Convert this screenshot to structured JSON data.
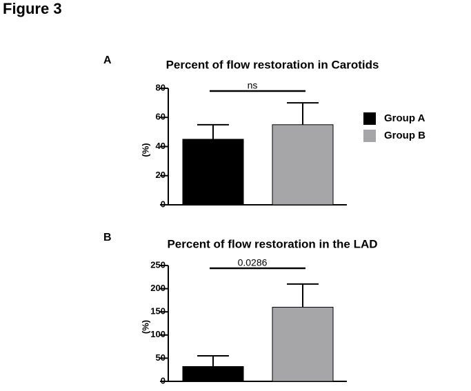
{
  "figure_title": "Figure 3",
  "chart_data": [
    {
      "type": "bar",
      "panel": "A",
      "title": "Percent of flow restoration in Carotids",
      "y_label": "(%)",
      "series": [
        {
          "name": "Group A",
          "color": "#000000",
          "values": [
            45
          ],
          "errors": [
            10
          ]
        },
        {
          "name": "Group B",
          "color": "#a6a6a8",
          "values": [
            55
          ],
          "errors": [
            15
          ]
        }
      ],
      "ylim": [
        0,
        80
      ],
      "yticks": [
        0,
        20,
        40,
        60,
        80
      ],
      "annotation": "ns",
      "legend": "right"
    },
    {
      "type": "bar",
      "panel": "B",
      "title": "Percent of flow restoration in the LAD",
      "y_label": "(%)",
      "series": [
        {
          "color": "#000000",
          "values": [
            32
          ],
          "errors": [
            23
          ]
        },
        {
          "color": "#a6a6a8",
          "values": [
            160
          ],
          "errors": [
            50
          ]
        }
      ],
      "ylim": [
        0,
        250
      ],
      "yticks": [
        0,
        50,
        100,
        150,
        200,
        250
      ],
      "annotation": "0.0286"
    }
  ]
}
